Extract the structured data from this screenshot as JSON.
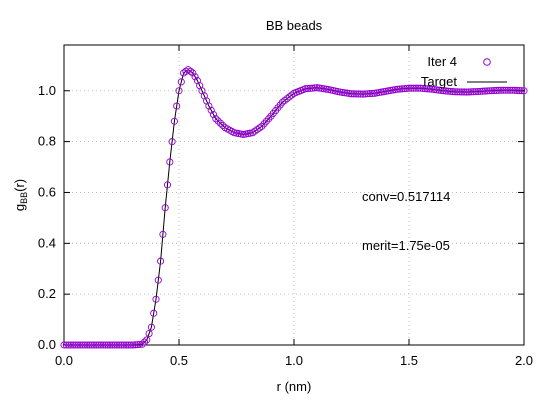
{
  "chart_data": {
    "type": "scatter",
    "title": "BB beads",
    "xlabel": "r (nm)",
    "ylabel": {
      "main": "g",
      "sub": "BB",
      "tail": "(r)"
    },
    "xlim": [
      0.0,
      2.0
    ],
    "ylim": [
      0.0,
      1.18
    ],
    "x_ticks": [
      0.0,
      0.5,
      1.0,
      1.5,
      2.0
    ],
    "x_tick_labels": [
      "0.0",
      "0.5",
      "1.0",
      "1.5",
      "2.0"
    ],
    "y_ticks": [
      0.0,
      0.2,
      0.4,
      0.6,
      0.8,
      1.0
    ],
    "y_tick_labels": [
      "0.0",
      "0.2",
      "0.4",
      "0.6",
      "0.8",
      "1.0"
    ],
    "grid": true,
    "legend_position": "top-right",
    "series": [
      {
        "name": "Iter 4",
        "style": "markers",
        "marker": "open-circle",
        "color": "#9400d3"
      },
      {
        "name": "Target",
        "style": "line",
        "color": "#000000"
      }
    ],
    "annotations": [
      "conv=0.517114",
      "merit=1.75e-05"
    ],
    "curve_points": [
      [
        0.0,
        0.0
      ],
      [
        0.3,
        0.0
      ],
      [
        0.34,
        0.003
      ],
      [
        0.36,
        0.02
      ],
      [
        0.38,
        0.07
      ],
      [
        0.4,
        0.18
      ],
      [
        0.42,
        0.33
      ],
      [
        0.44,
        0.54
      ],
      [
        0.46,
        0.72
      ],
      [
        0.48,
        0.88
      ],
      [
        0.5,
        1.0
      ],
      [
        0.52,
        1.07
      ],
      [
        0.54,
        1.083
      ],
      [
        0.56,
        1.07
      ],
      [
        0.58,
        1.04
      ],
      [
        0.6,
        1.0
      ],
      [
        0.63,
        0.94
      ],
      [
        0.66,
        0.89
      ],
      [
        0.7,
        0.855
      ],
      [
        0.74,
        0.835
      ],
      [
        0.78,
        0.828
      ],
      [
        0.82,
        0.835
      ],
      [
        0.86,
        0.86
      ],
      [
        0.9,
        0.9
      ],
      [
        0.95,
        0.955
      ],
      [
        1.0,
        0.99
      ],
      [
        1.05,
        1.008
      ],
      [
        1.1,
        1.012
      ],
      [
        1.15,
        1.005
      ],
      [
        1.2,
        0.995
      ],
      [
        1.25,
        0.988
      ],
      [
        1.3,
        0.987
      ],
      [
        1.35,
        0.99
      ],
      [
        1.4,
        0.998
      ],
      [
        1.45,
        1.006
      ],
      [
        1.5,
        1.01
      ],
      [
        1.55,
        1.01
      ],
      [
        1.6,
        1.006
      ],
      [
        1.65,
        1.0
      ],
      [
        1.7,
        0.996
      ],
      [
        1.75,
        0.995
      ],
      [
        1.8,
        0.997
      ],
      [
        1.85,
        1.0
      ],
      [
        1.9,
        1.002
      ],
      [
        1.95,
        1.002
      ],
      [
        2.0,
        1.0
      ]
    ],
    "marker_step": 0.01
  }
}
